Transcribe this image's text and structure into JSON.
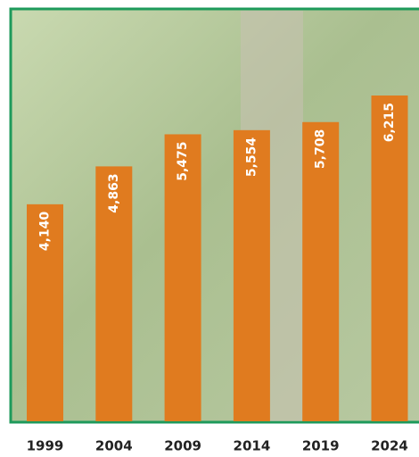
{
  "chart_data": {
    "type": "bar",
    "categories": [
      "1999",
      "2004",
      "2009",
      "2014",
      "2019",
      "2024"
    ],
    "values": [
      4140,
      4863,
      5475,
      5554,
      5708,
      6215
    ],
    "value_labels": [
      "4,140",
      "4,863",
      "5,475",
      "5,554",
      "5,708",
      "6,215"
    ],
    "color": "#e07b1f"
  }
}
